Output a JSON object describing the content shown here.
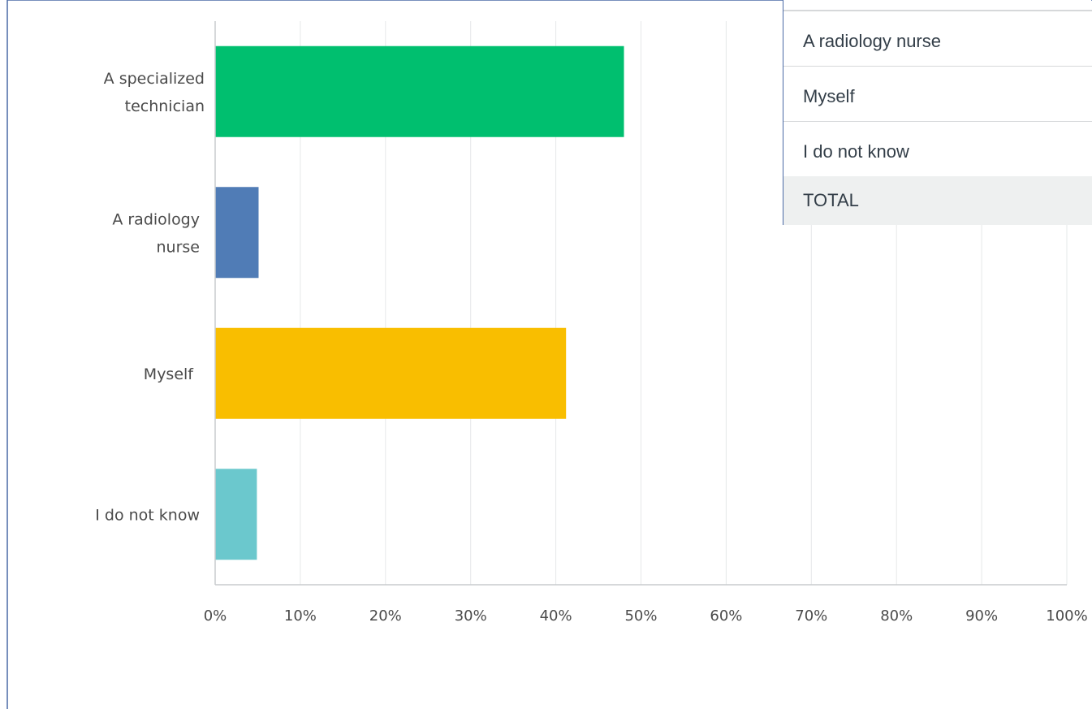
{
  "chart_data": {
    "type": "bar",
    "orientation": "horizontal",
    "categories": [
      "A specialized technician",
      "A radiology nurse",
      "Myself",
      "I do not know"
    ],
    "category_label_lines": [
      [
        "A specialized",
        "technician"
      ],
      [
        "A radiology",
        "nurse"
      ],
      [
        "Myself"
      ],
      [
        "I do not know"
      ]
    ],
    "values": [
      48.0,
      5.1,
      41.2,
      4.9
    ],
    "colors": [
      "#00bf6f",
      "#507cb6",
      "#f9be00",
      "#6bc8cd"
    ],
    "xlim": [
      0,
      100
    ],
    "x_ticks": [
      0,
      10,
      20,
      30,
      40,
      50,
      60,
      70,
      80,
      90,
      100
    ],
    "x_tick_labels": [
      "0%",
      "10%",
      "20%",
      "30%",
      "40%",
      "50%",
      "60%",
      "70%",
      "80%",
      "90%",
      "100%"
    ],
    "grid": true,
    "xlabel": "",
    "ylabel": ""
  },
  "response_table": {
    "rows": [
      "A radiology nurse",
      "Myself",
      "I do not know"
    ],
    "total_label": "TOTAL"
  }
}
